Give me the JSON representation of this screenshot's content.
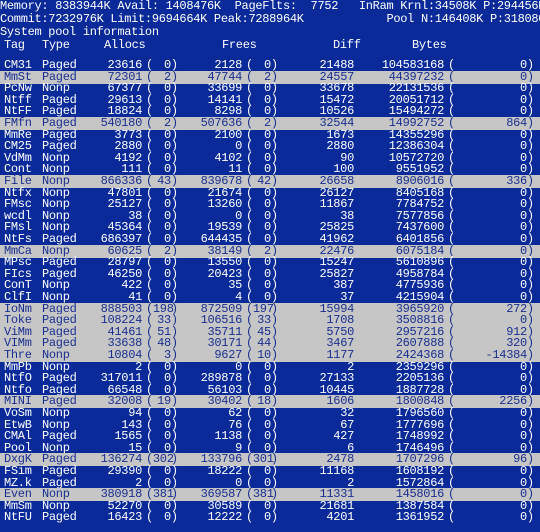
{
  "header": {
    "line1": "Memory: 8383944K Avail: 1408476K  PageFlts:  7752   InRam Krnl:34508K P:294456K",
    "line2": "Commit:7232976K Limit:9694664K Peak:7288964K            Pool N:146408K P:318080K",
    "line3": "System pool information"
  },
  "columns": {
    "tag": "Tag",
    "type": "Type",
    "allocs": "Allocs",
    "frees": "Frees",
    "diff": "Diff",
    "bytes": "Bytes"
  },
  "rows": [
    {
      "tag": "CM31",
      "type": "Paged",
      "allocs": "23616",
      "allocs_d": "0",
      "frees": "2128",
      "frees_d": "0",
      "diff": "21488",
      "bytes": "104583168",
      "bytes_d": "0",
      "hl": false
    },
    {
      "tag": "MmSt",
      "type": "Paged",
      "allocs": "72301",
      "allocs_d": "2",
      "frees": "47744",
      "frees_d": "2",
      "diff": "24557",
      "bytes": "44397232",
      "bytes_d": "0",
      "hl": true
    },
    {
      "tag": "PcNw",
      "type": "Nonp",
      "allocs": "67377",
      "allocs_d": "0",
      "frees": "33699",
      "frees_d": "0",
      "diff": "33678",
      "bytes": "22131536",
      "bytes_d": "0",
      "hl": false
    },
    {
      "tag": "Ntff",
      "type": "Paged",
      "allocs": "29613",
      "allocs_d": "0",
      "frees": "14141",
      "frees_d": "0",
      "diff": "15472",
      "bytes": "20051712",
      "bytes_d": "0",
      "hl": false
    },
    {
      "tag": "NtFF",
      "type": "Paged",
      "allocs": "18824",
      "allocs_d": "0",
      "frees": "8298",
      "frees_d": "0",
      "diff": "10526",
      "bytes": "15494272",
      "bytes_d": "0",
      "hl": false
    },
    {
      "tag": "FMfn",
      "type": "Paged",
      "allocs": "540180",
      "allocs_d": "2",
      "frees": "507636",
      "frees_d": "2",
      "diff": "32544",
      "bytes": "14992752",
      "bytes_d": "864",
      "hl": true
    },
    {
      "tag": "MmRe",
      "type": "Paged",
      "allocs": "3773",
      "allocs_d": "0",
      "frees": "2100",
      "frees_d": "0",
      "diff": "1673",
      "bytes": "14355296",
      "bytes_d": "0",
      "hl": false
    },
    {
      "tag": "CM25",
      "type": "Paged",
      "allocs": "2880",
      "allocs_d": "0",
      "frees": "0",
      "frees_d": "0",
      "diff": "2880",
      "bytes": "12386304",
      "bytes_d": "0",
      "hl": false
    },
    {
      "tag": "VdMm",
      "type": "Nonp",
      "allocs": "4192",
      "allocs_d": "0",
      "frees": "4102",
      "frees_d": "0",
      "diff": "90",
      "bytes": "10572720",
      "bytes_d": "0",
      "hl": false
    },
    {
      "tag": "Cont",
      "type": "Nonp",
      "allocs": "111",
      "allocs_d": "0",
      "frees": "11",
      "frees_d": "0",
      "diff": "100",
      "bytes": "9551952",
      "bytes_d": "0",
      "hl": false
    },
    {
      "tag": "File",
      "type": "Nonp",
      "allocs": "866336",
      "allocs_d": "43",
      "frees": "839678",
      "frees_d": "42",
      "diff": "26658",
      "bytes": "8906016",
      "bytes_d": "336",
      "hl": true
    },
    {
      "tag": "Ntfx",
      "type": "Nonp",
      "allocs": "47801",
      "allocs_d": "0",
      "frees": "21674",
      "frees_d": "0",
      "diff": "26127",
      "bytes": "8405168",
      "bytes_d": "0",
      "hl": false
    },
    {
      "tag": "FMsc",
      "type": "Nonp",
      "allocs": "25127",
      "allocs_d": "0",
      "frees": "13260",
      "frees_d": "0",
      "diff": "11867",
      "bytes": "7784752",
      "bytes_d": "0",
      "hl": false
    },
    {
      "tag": "wcdl",
      "type": "Nonp",
      "allocs": "38",
      "allocs_d": "0",
      "frees": "0",
      "frees_d": "0",
      "diff": "38",
      "bytes": "7577856",
      "bytes_d": "0",
      "hl": false
    },
    {
      "tag": "FMsl",
      "type": "Nonp",
      "allocs": "45364",
      "allocs_d": "0",
      "frees": "19539",
      "frees_d": "0",
      "diff": "25825",
      "bytes": "7437600",
      "bytes_d": "0",
      "hl": false
    },
    {
      "tag": "NtFs",
      "type": "Paged",
      "allocs": "686397",
      "allocs_d": "0",
      "frees": "644435",
      "frees_d": "0",
      "diff": "41962",
      "bytes": "6401856",
      "bytes_d": "0",
      "hl": false
    },
    {
      "tag": "MmCa",
      "type": "Nonp",
      "allocs": "60625",
      "allocs_d": "2",
      "frees": "38149",
      "frees_d": "2",
      "diff": "22476",
      "bytes": "6075184",
      "bytes_d": "0",
      "hl": true
    },
    {
      "tag": "MPsc",
      "type": "Paged",
      "allocs": "28797",
      "allocs_d": "0",
      "frees": "13550",
      "frees_d": "0",
      "diff": "15247",
      "bytes": "5610896",
      "bytes_d": "0",
      "hl": false
    },
    {
      "tag": "FIcs",
      "type": "Paged",
      "allocs": "46250",
      "allocs_d": "0",
      "frees": "20423",
      "frees_d": "0",
      "diff": "25827",
      "bytes": "4958784",
      "bytes_d": "0",
      "hl": false
    },
    {
      "tag": "ConT",
      "type": "Nonp",
      "allocs": "422",
      "allocs_d": "0",
      "frees": "35",
      "frees_d": "0",
      "diff": "387",
      "bytes": "4775936",
      "bytes_d": "0",
      "hl": false
    },
    {
      "tag": "ClfI",
      "type": "Nonp",
      "allocs": "41",
      "allocs_d": "0",
      "frees": "4",
      "frees_d": "0",
      "diff": "37",
      "bytes": "4215904",
      "bytes_d": "0",
      "hl": false
    },
    {
      "tag": "IoNm",
      "type": "Paged",
      "allocs": "888503",
      "allocs_d": "198",
      "frees": "872509",
      "frees_d": "197",
      "diff": "15994",
      "bytes": "3965920",
      "bytes_d": "272",
      "hl": true
    },
    {
      "tag": "Toke",
      "type": "Paged",
      "allocs": "108224",
      "allocs_d": "33",
      "frees": "106516",
      "frees_d": "33",
      "diff": "1708",
      "bytes": "3508816",
      "bytes_d": "0",
      "hl": true
    },
    {
      "tag": "ViMm",
      "type": "Paged",
      "allocs": "41461",
      "allocs_d": "51",
      "frees": "35711",
      "frees_d": "45",
      "diff": "5750",
      "bytes": "2957216",
      "bytes_d": "912",
      "hl": true
    },
    {
      "tag": "VIMm",
      "type": "Paged",
      "allocs": "33638",
      "allocs_d": "48",
      "frees": "30171",
      "frees_d": "44",
      "diff": "3467",
      "bytes": "2607888",
      "bytes_d": "320",
      "hl": true
    },
    {
      "tag": "Thre",
      "type": "Nonp",
      "allocs": "10804",
      "allocs_d": "3",
      "frees": "9627",
      "frees_d": "10",
      "diff": "1177",
      "bytes": "2424368",
      "bytes_d": "-14384",
      "hl": true
    },
    {
      "tag": "MmPb",
      "type": "Nonp",
      "allocs": "2",
      "allocs_d": "0",
      "frees": "0",
      "frees_d": "0",
      "diff": "2",
      "bytes": "2359296",
      "bytes_d": "0",
      "hl": false
    },
    {
      "tag": "NtfO",
      "type": "Paged",
      "allocs": "317011",
      "allocs_d": "0",
      "frees": "289878",
      "frees_d": "0",
      "diff": "27133",
      "bytes": "2205136",
      "bytes_d": "0",
      "hl": false
    },
    {
      "tag": "Ntfo",
      "type": "Paged",
      "allocs": "66548",
      "allocs_d": "0",
      "frees": "56103",
      "frees_d": "0",
      "diff": "10445",
      "bytes": "1887728",
      "bytes_d": "0",
      "hl": false
    },
    {
      "tag": "MINI",
      "type": "Paged",
      "allocs": "32008",
      "allocs_d": "19",
      "frees": "30402",
      "frees_d": "18",
      "diff": "1606",
      "bytes": "1800848",
      "bytes_d": "2256",
      "hl": true
    },
    {
      "tag": "VoSm",
      "type": "Nonp",
      "allocs": "94",
      "allocs_d": "0",
      "frees": "62",
      "frees_d": "0",
      "diff": "32",
      "bytes": "1796560",
      "bytes_d": "0",
      "hl": false
    },
    {
      "tag": "EtwB",
      "type": "Nonp",
      "allocs": "143",
      "allocs_d": "0",
      "frees": "76",
      "frees_d": "0",
      "diff": "67",
      "bytes": "1777696",
      "bytes_d": "0",
      "hl": false
    },
    {
      "tag": "CMAl",
      "type": "Paged",
      "allocs": "1565",
      "allocs_d": "0",
      "frees": "1138",
      "frees_d": "0",
      "diff": "427",
      "bytes": "1748992",
      "bytes_d": "0",
      "hl": false
    },
    {
      "tag": "Pool",
      "type": "Nonp",
      "allocs": "15",
      "allocs_d": "0",
      "frees": "9",
      "frees_d": "0",
      "diff": "6",
      "bytes": "1746496",
      "bytes_d": "0",
      "hl": false
    },
    {
      "tag": "DxgK",
      "type": "Paged",
      "allocs": "136274",
      "allocs_d": "302",
      "frees": "133796",
      "frees_d": "301",
      "diff": "2478",
      "bytes": "1707296",
      "bytes_d": "96",
      "hl": true
    },
    {
      "tag": "FSim",
      "type": "Paged",
      "allocs": "29390",
      "allocs_d": "0",
      "frees": "18222",
      "frees_d": "0",
      "diff": "11168",
      "bytes": "1608192",
      "bytes_d": "0",
      "hl": false
    },
    {
      "tag": "MZ.k",
      "type": "Paged",
      "allocs": "2",
      "allocs_d": "0",
      "frees": "0",
      "frees_d": "0",
      "diff": "2",
      "bytes": "1572864",
      "bytes_d": "0",
      "hl": false
    },
    {
      "tag": "Even",
      "type": "Nonp",
      "allocs": "380918",
      "allocs_d": "381",
      "frees": "369587",
      "frees_d": "381",
      "diff": "11331",
      "bytes": "1458016",
      "bytes_d": "0",
      "hl": true
    },
    {
      "tag": "MmSm",
      "type": "Nonp",
      "allocs": "52270",
      "allocs_d": "0",
      "frees": "30589",
      "frees_d": "0",
      "diff": "21681",
      "bytes": "1387584",
      "bytes_d": "0",
      "hl": false
    },
    {
      "tag": "NtFU",
      "type": "Paged",
      "allocs": "16423",
      "allocs_d": "0",
      "frees": "12222",
      "frees_d": "0",
      "diff": "4201",
      "bytes": "1361952",
      "bytes_d": "0",
      "hl": false
    }
  ],
  "colors": {
    "background": "#0a2a9a",
    "text": "#ffffff",
    "highlight_bg": "#c6c6c6",
    "highlight_text": "#1a2f8f"
  }
}
